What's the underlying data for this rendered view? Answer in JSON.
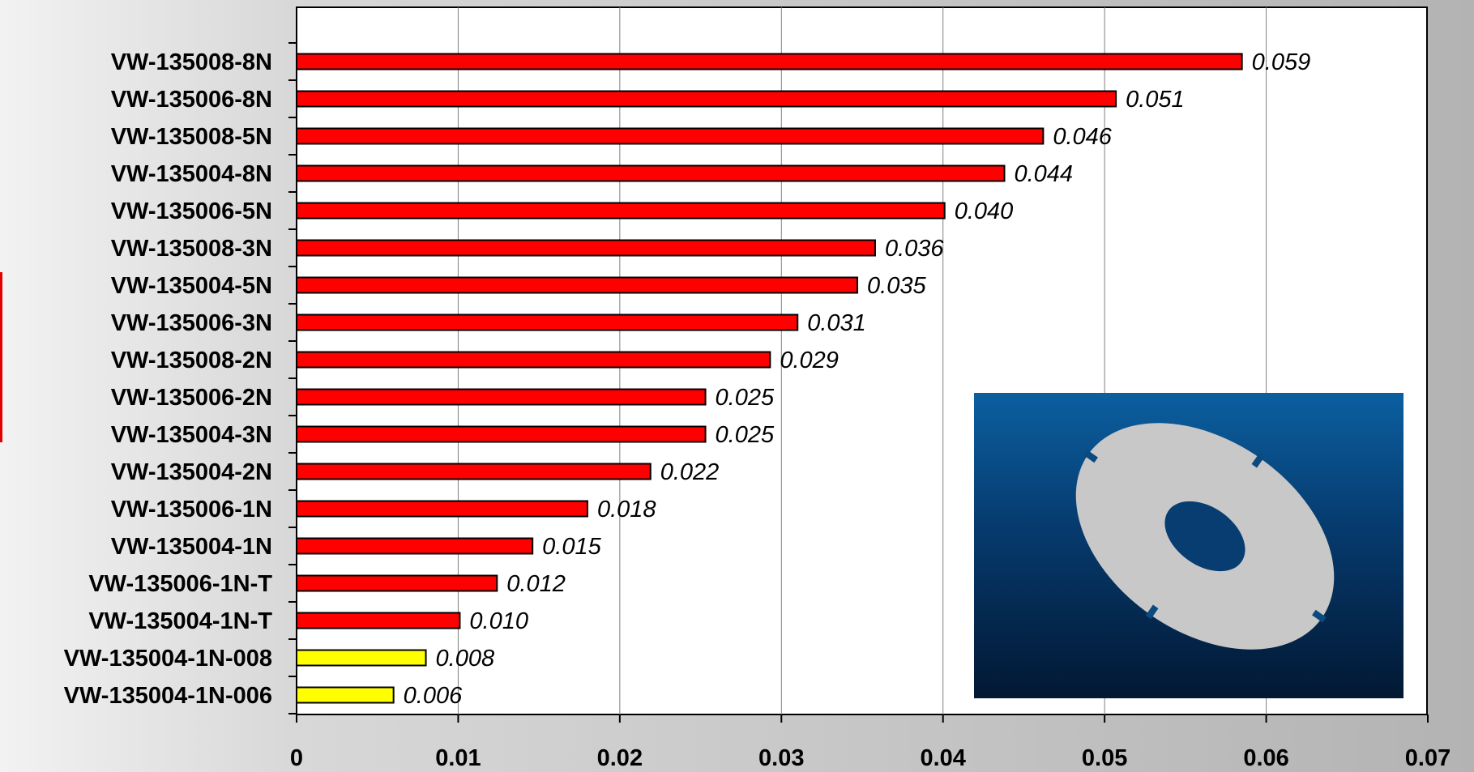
{
  "chart_data": {
    "type": "bar",
    "orientation": "horizontal",
    "title": "",
    "xlabel": "",
    "ylabel": "",
    "xlim": [
      0,
      0.07
    ],
    "grid": "vertical gridlines",
    "x_ticks": [
      "0",
      "0.01",
      "0.02",
      "0.03",
      "0.04",
      "0.05",
      "0.06",
      "0.07"
    ],
    "colors": {
      "red_bar": "#ff0000",
      "yellow_bar": "#ffff00",
      "bar_outline": "#000000"
    },
    "bars": [
      {
        "category": "VW-135008-8N",
        "value": 0.0585,
        "label": "0.059",
        "color": "red"
      },
      {
        "category": "VW-135006-8N",
        "value": 0.0507,
        "label": "0.051",
        "color": "red"
      },
      {
        "category": "VW-135008-5N",
        "value": 0.0462,
        "label": "0.046",
        "color": "red"
      },
      {
        "category": "VW-135004-8N",
        "value": 0.0438,
        "label": "0.044",
        "color": "red"
      },
      {
        "category": "VW-135006-5N",
        "value": 0.0401,
        "label": "0.040",
        "color": "red"
      },
      {
        "category": "VW-135008-3N",
        "value": 0.0358,
        "label": "0.036",
        "color": "red"
      },
      {
        "category": "VW-135004-5N",
        "value": 0.0347,
        "label": "0.035",
        "color": "red"
      },
      {
        "category": "VW-135006-3N",
        "value": 0.031,
        "label": "0.031",
        "color": "red"
      },
      {
        "category": "VW-135008-2N",
        "value": 0.0293,
        "label": "0.029",
        "color": "red"
      },
      {
        "category": "VW-135006-2N",
        "value": 0.0253,
        "label": "0.025",
        "color": "red"
      },
      {
        "category": "VW-135004-3N",
        "value": 0.0253,
        "label": "0.025",
        "color": "red"
      },
      {
        "category": "VW-135004-2N",
        "value": 0.0219,
        "label": "0.022",
        "color": "red"
      },
      {
        "category": "VW-135006-1N",
        "value": 0.018,
        "label": "0.018",
        "color": "red"
      },
      {
        "category": "VW-135004-1N",
        "value": 0.0146,
        "label": "0.015",
        "color": "red"
      },
      {
        "category": "VW-135006-1N-T",
        "value": 0.0124,
        "label": "0.012",
        "color": "red"
      },
      {
        "category": "VW-135004-1N-T",
        "value": 0.0101,
        "label": "0.010",
        "color": "red"
      },
      {
        "category": "VW-135004-1N-008",
        "value": 0.008,
        "label": "0.008",
        "color": "yellow"
      },
      {
        "category": "VW-135004-1N-006",
        "value": 0.006,
        "label": "0.006",
        "color": "yellow"
      }
    ]
  },
  "inset_image": {
    "subject": "gray washer with four notches on dark blue background"
  }
}
